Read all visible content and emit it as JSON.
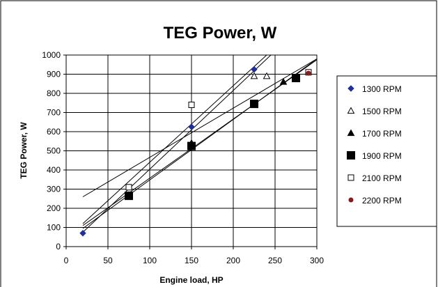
{
  "chart_data": {
    "type": "scatter",
    "title": "TEG Power, W",
    "xlabel": "Engine load, HP",
    "ylabel": "TEG Power, W",
    "xlim": [
      0,
      300
    ],
    "ylim": [
      0,
      1000
    ],
    "xticks": [
      0,
      50,
      100,
      150,
      200,
      250,
      300
    ],
    "yticks": [
      0,
      100,
      200,
      300,
      400,
      500,
      600,
      700,
      800,
      900,
      1000
    ],
    "grid": true,
    "legend_position": "right",
    "series": [
      {
        "name": "1300 RPM",
        "marker": "diamond",
        "color": "#1f2f99",
        "points": [
          [
            20,
            70
          ],
          [
            150,
            625
          ],
          [
            225,
            925
          ]
        ]
      },
      {
        "name": "1500 RPM",
        "marker": "triangle-open",
        "color": "#000000",
        "points": [
          [
            150,
            540
          ],
          [
            225,
            890
          ],
          [
            240,
            890
          ]
        ]
      },
      {
        "name": "1700 RPM",
        "marker": "triangle",
        "color": "#000000",
        "points": [
          [
            75,
            270
          ],
          [
            150,
            540
          ],
          [
            260,
            860
          ]
        ]
      },
      {
        "name": "1900 RPM",
        "marker": "square",
        "color": "#000000",
        "points": [
          [
            75,
            265
          ],
          [
            150,
            525
          ],
          [
            225,
            745
          ],
          [
            275,
            880
          ]
        ]
      },
      {
        "name": "2100 RPM",
        "marker": "square-open",
        "color": "#000000",
        "points": [
          [
            75,
            310
          ],
          [
            150,
            740
          ],
          [
            290,
            910
          ]
        ]
      },
      {
        "name": "2200 RPM",
        "marker": "circle",
        "color": "#8b1a1a",
        "points": [
          [
            290,
            905
          ]
        ]
      }
    ],
    "trendlines": [
      [
        [
          20,
          260
        ],
        [
          300,
          980
        ]
      ],
      [
        [
          20,
          110
        ],
        [
          300,
          975
        ]
      ],
      [
        [
          20,
          95
        ],
        [
          300,
          980
        ]
      ],
      [
        [
          20,
          75
        ],
        [
          245,
          1000
        ]
      ],
      [
        [
          20,
          120
        ],
        [
          240,
          1000
        ]
      ]
    ]
  }
}
